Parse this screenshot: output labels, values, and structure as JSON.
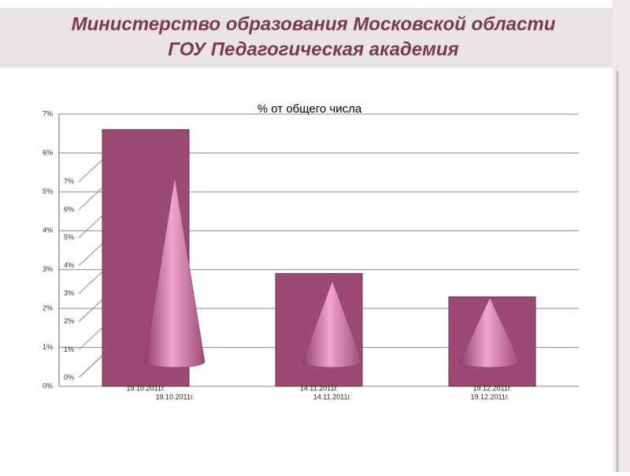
{
  "header": {
    "line1": "Министерство образования Московской области",
    "line2": "ГОУ Педагогическая академия"
  },
  "chart_data": [
    {
      "type": "bar",
      "title": "% от общего числа",
      "categories": [
        "19.10.2011г.",
        "14.11.2011г.",
        "19.12.2011г."
      ],
      "values": [
        6.6,
        2.9,
        2.3
      ],
      "color": "#9b4a73",
      "ylim": [
        0,
        7
      ],
      "yticks": [
        {
          "value": 0,
          "label": "0%"
        },
        {
          "value": 1,
          "label": "1%"
        },
        {
          "value": 2,
          "label": "2%"
        },
        {
          "value": 3,
          "label": "3%"
        },
        {
          "value": 4,
          "label": "4%"
        },
        {
          "value": 5,
          "label": "5%"
        },
        {
          "value": 6,
          "label": "6%"
        },
        {
          "value": 7,
          "label": "7%"
        }
      ],
      "grid": true
    },
    {
      "type": "cone",
      "categories": [
        "19.10.2011г.",
        "14.11.2011г.",
        "19.12.2011г."
      ],
      "values": [
        6.6,
        2.9,
        2.3
      ],
      "color": "#d77aa8",
      "ylim": [
        0,
        7
      ],
      "yticks": [
        {
          "value": 0,
          "label": "0%"
        },
        {
          "value": 1,
          "label": "1%"
        },
        {
          "value": 2,
          "label": "2%"
        },
        {
          "value": 3,
          "label": "3%"
        },
        {
          "value": 4,
          "label": "4%"
        },
        {
          "value": 5,
          "label": "5%"
        },
        {
          "value": 6,
          "label": "6%"
        },
        {
          "value": 7,
          "label": "7%"
        }
      ],
      "grid": true
    }
  ]
}
